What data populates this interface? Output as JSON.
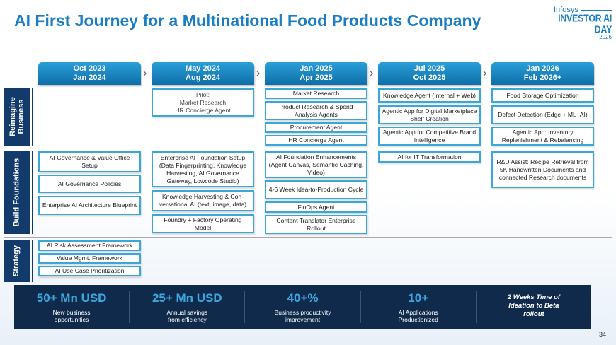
{
  "title": "AI First Journey for a Multinational Food Products Company",
  "logo": {
    "brand": "Infosys",
    "event": "INVESTOR AI DAY",
    "year": "2026"
  },
  "columns": [
    {
      "l1": "Oct 2023",
      "l2": "Jan 2024"
    },
    {
      "l1": "May 2024",
      "l2": "Aug 2024"
    },
    {
      "l1": "Jan 2025",
      "l2": "Apr 2025"
    },
    {
      "l1": "Jul 2025",
      "l2": "Oct 2025"
    },
    {
      "l1": "Jan 2026",
      "l2": "Feb 2026+"
    }
  ],
  "rows": {
    "reimagine": "Reimagine Business",
    "build": "Build Foundations",
    "strategy": "Strategy"
  },
  "reimagine": {
    "c2": [
      "Pilot:",
      "Market Research",
      "HR Concierge Agent"
    ],
    "c3": [
      "Market Research",
      "Product Research & Spend Analysis Agents",
      "Procurement Agent",
      "HR Concierge Agent"
    ],
    "c4": [
      "Knowledge Agent (Internal + Web)",
      "Agentic App for Digital Marketplace Shelf Creation",
      "Agentic App for Competitive Brand Intelligence"
    ],
    "c5": [
      "Food Storage Optimization",
      "Defect Detection  (Edge + ML+AI)",
      "Agentic App: Inventory Replenishment & Rebalancing"
    ]
  },
  "build": {
    "c1": [
      "AI Governance & Value Office Setup",
      "AI Governance Policies",
      "Enterprise AI Architecture Blueprint"
    ],
    "c2": [
      "Enterprise AI Foundation Setup (Data Fingerprinting, Knowledge Harvesting, AI Governance Gateway, Lowcode Studio)",
      "Knowledge Harvesting & Con-versational AI (text, image, data)",
      "Foundry + Factory Operating Model"
    ],
    "c3": [
      "AI Foundation Enhancements (Agent Canvas, Semantic Caching, Video)",
      "4-6 Week Idea-to-Production Cycle",
      "FinOps Agent",
      "Content Translator Enterprise Rollout"
    ],
    "c4": [
      "AI for IT Transformation"
    ],
    "c5": [
      "R&D Assist: Recipe Retrieval from 5K Handwritten Documents and connected Research documents"
    ]
  },
  "strategy": {
    "c1": [
      "AI Risk Assessment Framework",
      "Value Mgmt. Framework",
      "AI Use Case Prioritization"
    ]
  },
  "stats": [
    {
      "big": "50+ Mn USD",
      "small": "New business opportunities"
    },
    {
      "big": "25+ Mn USD",
      "small": "Annual savings from efficiency"
    },
    {
      "big": "40+%",
      "small": "Business productivity improvement"
    },
    {
      "big": "10+",
      "small": "AI Applications Productionized"
    },
    {
      "text": "2 Weeks Time of Ideation to Beta rollout"
    }
  ],
  "page_number": "34"
}
